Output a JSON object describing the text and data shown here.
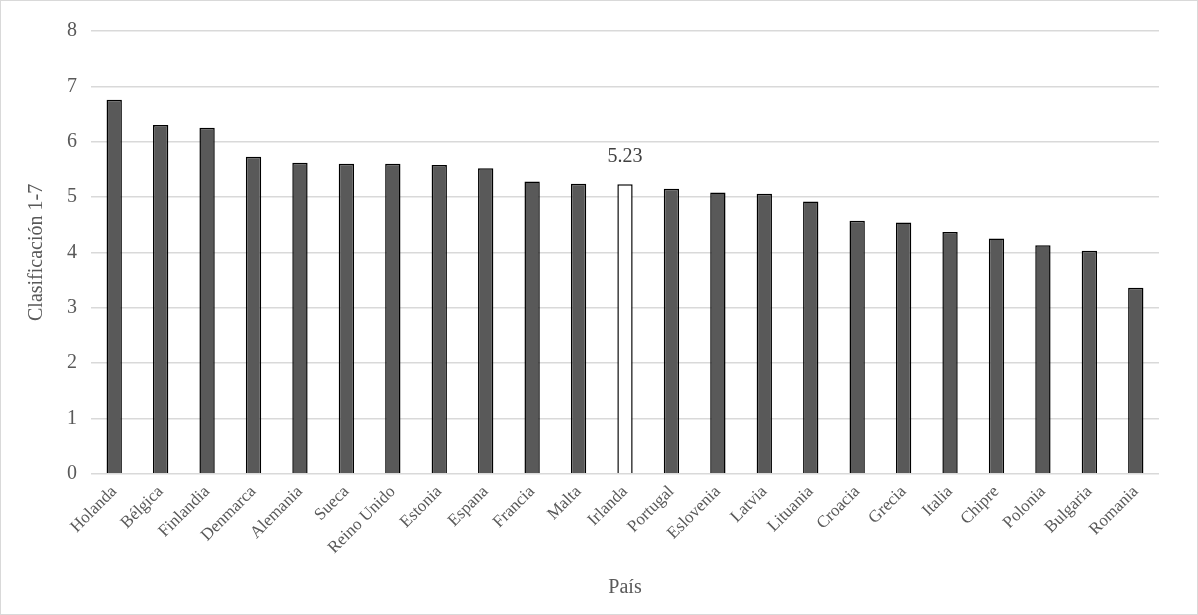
{
  "chart_data": {
    "type": "bar",
    "xlabel": "País",
    "ylabel": "Clasificación 1-7",
    "categories": [
      "Holanda",
      "Bélgica",
      "Finlandia",
      "Denmarca",
      "Alemania",
      "Sueca",
      "Reino Unido",
      "Estonia",
      "Espana",
      "Francia",
      "Malta",
      "Irlanda",
      "Portugal",
      "Eslovenia",
      "Latvia",
      "Lituania",
      "Croacia",
      "Grecia",
      "Italia",
      "Chipre",
      "Polonia",
      "Bulgaria",
      "Romania"
    ],
    "values": [
      6.76,
      6.3,
      6.25,
      5.73,
      5.62,
      5.6,
      5.6,
      5.58,
      5.52,
      5.28,
      5.24,
      5.23,
      5.15,
      5.08,
      5.06,
      4.92,
      4.57,
      4.54,
      4.37,
      4.25,
      4.13,
      4.03,
      3.36
    ],
    "colors": [
      "#595959",
      "#595959",
      "#595959",
      "#595959",
      "#595959",
      "#595959",
      "#595959",
      "#595959",
      "#595959",
      "#595959",
      "#595959",
      "#ffffff",
      "#595959",
      "#595959",
      "#595959",
      "#595959",
      "#595959",
      "#595959",
      "#595959",
      "#595959",
      "#595959",
      "#595959",
      "#595959"
    ],
    "value_labels": [
      null,
      null,
      null,
      null,
      null,
      null,
      null,
      null,
      null,
      null,
      null,
      "5.23",
      null,
      null,
      null,
      null,
      null,
      null,
      null,
      null,
      null,
      null,
      null
    ],
    "ylim": [
      0,
      8
    ],
    "yticks": [
      0,
      1,
      2,
      3,
      4,
      5,
      6,
      7,
      8
    ],
    "grid": "y",
    "legend": false
  }
}
